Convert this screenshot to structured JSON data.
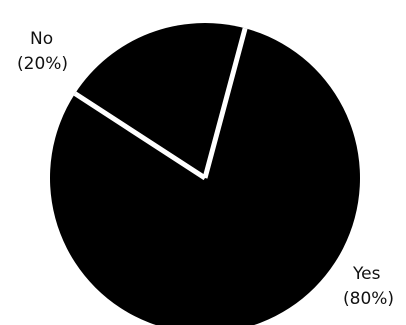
{
  "chart_data": {
    "type": "pie",
    "title": "",
    "slices": [
      {
        "label": "No",
        "percent_label": "(20%)",
        "value": 20
      },
      {
        "label": "Yes",
        "percent_label": "(80%)",
        "value": 80
      }
    ],
    "start_angle_deg": 15,
    "colors": {
      "slice_fill": "#000000",
      "separator": "#ffffff",
      "background": "#ffffff"
    }
  }
}
